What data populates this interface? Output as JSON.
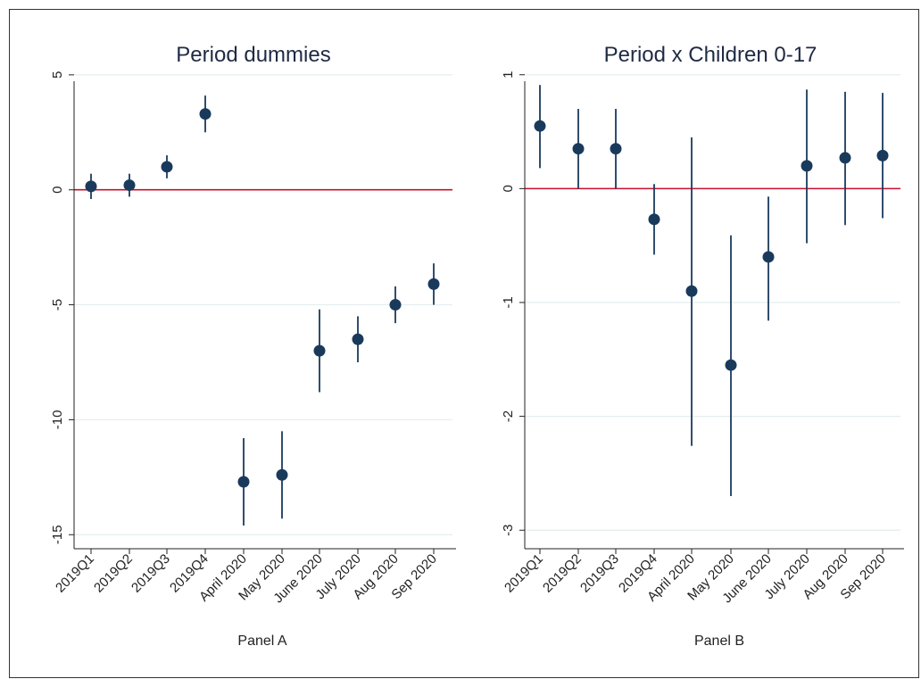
{
  "chart_data": [
    {
      "type": "scatter",
      "title": "Period dummies",
      "xlabel": "Panel A",
      "ylabel": "",
      "categories": [
        "2019Q1",
        "2019Q2",
        "2019Q3",
        "2019Q4",
        "April 2020",
        "May 2020",
        "June 2020",
        "July 2020",
        "Aug 2020",
        "Sep 2020"
      ],
      "series": [
        {
          "values": [
            0.15,
            0.2,
            1.0,
            3.3,
            -12.7,
            -12.4,
            -7.0,
            -6.5,
            -5.0,
            -4.1
          ],
          "ci_low": [
            -0.4,
            -0.3,
            0.5,
            2.5,
            -14.6,
            -14.3,
            -8.8,
            -7.5,
            -5.8,
            -5.0
          ],
          "ci_high": [
            0.7,
            0.7,
            1.5,
            4.1,
            -10.8,
            -10.5,
            -5.2,
            -5.5,
            -4.2,
            -3.2
          ]
        }
      ],
      "ylim": [
        -15.3,
        5.5
      ],
      "yticks": [
        5,
        0,
        -5,
        -10,
        -15
      ],
      "ytick_labels": [
        "5",
        "0",
        "-5",
        "-10",
        "-15"
      ],
      "reference_line": 0,
      "grid": true,
      "colors": {
        "marker": "#1a3a5c",
        "refline": "#c8102e",
        "grid": "#e4eef0"
      }
    },
    {
      "type": "scatter",
      "title": "Period x Children 0-17",
      "xlabel": "Panel B",
      "ylabel": "",
      "categories": [
        "2019Q1",
        "2019Q2",
        "2019Q3",
        "2019Q4",
        "April 2020",
        "May 2020",
        "June 2020",
        "July 2020",
        "Aug 2020",
        "Sep 2020"
      ],
      "series": [
        {
          "values": [
            0.55,
            0.35,
            0.35,
            -0.27,
            -0.9,
            -1.55,
            -0.6,
            0.2,
            0.27,
            0.29
          ],
          "ci_low": [
            0.18,
            0.0,
            0.0,
            -0.58,
            -2.26,
            -2.7,
            -1.16,
            -0.48,
            -0.32,
            -0.26
          ],
          "ci_high": [
            0.91,
            0.7,
            0.7,
            0.04,
            0.45,
            -0.41,
            -0.07,
            0.87,
            0.85,
            0.84
          ]
        }
      ],
      "ylim": [
        -3.1,
        1.1
      ],
      "yticks": [
        1,
        0,
        -1,
        -2,
        -3
      ],
      "ytick_labels": [
        "1",
        "0",
        "-1",
        "-2",
        "-3"
      ],
      "reference_line": 0,
      "grid": true,
      "colors": {
        "marker": "#1a3a5c",
        "refline": "#c8102e",
        "grid": "#e4eef0"
      }
    }
  ]
}
